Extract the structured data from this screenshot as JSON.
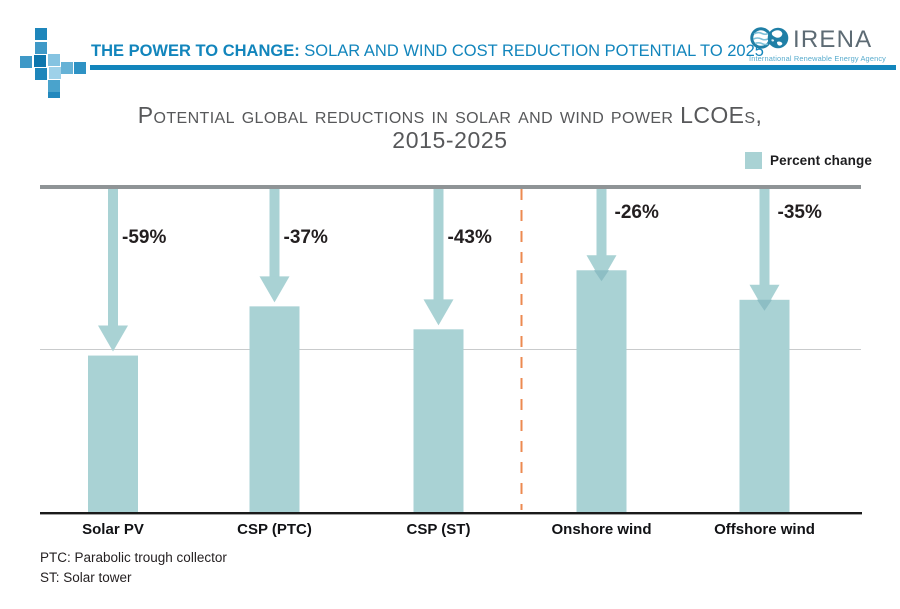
{
  "header": {
    "title_bold": "THE POWER TO CHANGE:",
    "title_rest": " SOLAR AND WIND COST REDUCTION POTENTIAL TO 2025",
    "accent_color": "#1285bc"
  },
  "irena": {
    "name": "IRENA",
    "tagline": "International Renewable Energy Agency"
  },
  "chart_title": {
    "line1": "Potential global reductions in solar and wind power LCOEs,",
    "line2": "2015-2025"
  },
  "legend": {
    "label": "Percent change",
    "swatch_color": "#a9d2d4"
  },
  "chart_data": {
    "type": "bar",
    "title": "Potential global reductions in solar and wind power LCOEs, 2015-2025",
    "categories": [
      "Solar PV",
      "CSP (PTC)",
      "CSP (ST)",
      "Onshore wind",
      "Offshore wind"
    ],
    "series": [
      {
        "name": "Percent change",
        "values": [
          -59,
          -37,
          -43,
          -26,
          -35
        ]
      }
    ],
    "value_labels": [
      "-59%",
      "-37%",
      "-43%",
      "-26%",
      "-35%"
    ],
    "bar_height_index_pct_of_axis": [
      48,
      63,
      56,
      74,
      65
    ],
    "baseline_note": "bars hang from top reference line (2015 level) toward zero axis",
    "legend_position": "top-right",
    "grid": "single mid gridline",
    "divider_after_category": "CSP (ST)",
    "groups": [
      {
        "name": "solar",
        "members": [
          0,
          1,
          2
        ]
      },
      {
        "name": "wind",
        "members": [
          3,
          4
        ]
      }
    ],
    "colors": {
      "bar": "#a9d2d4",
      "arrow": "#a9d2d4",
      "arrow_overlap": "#8dbec4",
      "divider": "#ec8a50",
      "top_line": "#8f9496",
      "gridline": "#c9cbcc",
      "axis": "#1a1a1a"
    }
  },
  "footnotes": [
    "PTC: Parabolic trough collector",
    "ST: Solar tower"
  ]
}
